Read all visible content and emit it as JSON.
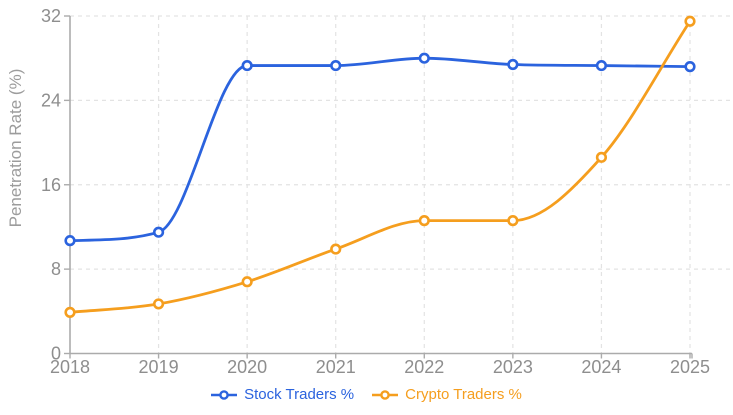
{
  "chart_data": {
    "type": "line",
    "x": [
      2018,
      2019,
      2020,
      2021,
      2022,
      2023,
      2024,
      2025
    ],
    "series": [
      {
        "name": "Stock Traders %",
        "color": "#2b63de",
        "values": [
          10.7,
          11.5,
          27.3,
          27.3,
          28.0,
          27.4,
          27.3,
          27.2
        ]
      },
      {
        "name": "Crypto Traders %",
        "color": "#f59e1e",
        "values": [
          3.9,
          4.7,
          6.8,
          9.9,
          12.6,
          12.6,
          18.6,
          31.5
        ]
      }
    ],
    "title": "",
    "xlabel": "",
    "ylabel": "Penetration Rate (%)",
    "ylim": [
      0,
      32
    ],
    "yticks": [
      0,
      8,
      16,
      24,
      32
    ],
    "grid": "dashed",
    "curve": "monotone",
    "point_style": "open-circle",
    "legend_position": "bottom"
  },
  "colors": {
    "axis_line": "#ababab",
    "grid_line": "#e3e3e3",
    "tick_text": "#8e8e8e",
    "axis_title_text": "#9c9c9c",
    "point_fill": "#ffffff",
    "background": "#ffffff"
  }
}
